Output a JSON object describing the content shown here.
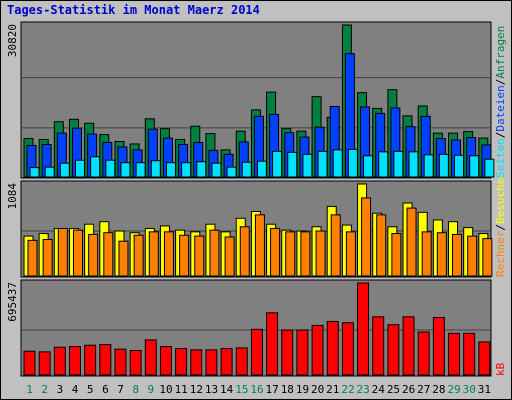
{
  "chart_data": {
    "type": "bar",
    "title": "Tages-Statistik im Monat Maerz 2014",
    "categories": [
      "1",
      "2",
      "3",
      "4",
      "5",
      "6",
      "7",
      "8",
      "9",
      "10",
      "11",
      "12",
      "13",
      "14",
      "15",
      "16",
      "17",
      "18",
      "19",
      "20",
      "21",
      "22",
      "23",
      "24",
      "25",
      "26",
      "27",
      "28",
      "29",
      "30",
      "31"
    ],
    "weekend_days": [
      "1",
      "2",
      "8",
      "9",
      "15",
      "16",
      "22",
      "23",
      "29",
      "30"
    ],
    "panels": [
      {
        "name": "hits-files-pages",
        "ymax_label": "30820",
        "ymax": 30820,
        "series": [
          {
            "name": "Anfragen",
            "color": "#008040",
            "values": [
              7800,
              7600,
              11200,
              11700,
              10900,
              8600,
              7200,
              6700,
              11800,
              9800,
              7600,
              10300,
              8800,
              5500,
              9300,
              13600,
              17200,
              9800,
              9300,
              16300,
              12100,
              30820,
              17100,
              13900,
              17700,
              12400,
              14400,
              8900,
              8900,
              9200,
              7900
            ]
          },
          {
            "name": "Dateien",
            "color": "#0040FF",
            "values": [
              6400,
              6600,
              8900,
              9900,
              8700,
              7000,
              6100,
              5500,
              9700,
              7900,
              6600,
              7000,
              5400,
              4600,
              7100,
              12300,
              12700,
              9000,
              8100,
              10100,
              14300,
              25000,
              14200,
              12900,
              14000,
              10200,
              12300,
              7800,
              7500,
              8000,
              6500
            ]
          },
          {
            "name": "Seiten",
            "color": "#00E0FF",
            "values": [
              1900,
              2000,
              2800,
              3400,
              4100,
              3400,
              2900,
              2900,
              3300,
              2900,
              2900,
              3100,
              2800,
              2000,
              3000,
              3200,
              5200,
              5000,
              4600,
              5200,
              5500,
              5600,
              4300,
              5100,
              5200,
              5100,
              4500,
              4600,
              4400,
              4300,
              3600
            ]
          }
        ]
      },
      {
        "name": "visits-sites",
        "ymax_label": "1084",
        "ymax": 1084,
        "series": [
          {
            "name": "Besuche",
            "color": "#FFFF00",
            "values": [
              470,
              500,
              560,
              560,
              610,
              640,
              530,
              510,
              560,
              590,
              540,
              520,
              610,
              520,
              680,
              760,
              610,
              540,
              530,
              580,
              820,
              600,
              1084,
              740,
              580,
              860,
              750,
              660,
              640,
              570,
              500
            ]
          },
          {
            "name": "Rechner",
            "color": "#FF8000",
            "values": [
              420,
              430,
              560,
              540,
              490,
              510,
              410,
              480,
              520,
              520,
              480,
              470,
              540,
              460,
              580,
              720,
              560,
              520,
              520,
              530,
              720,
              520,
              920,
              720,
              500,
              800,
              520,
              510,
              490,
              470,
              440
            ]
          }
        ]
      },
      {
        "name": "kbytes",
        "ymax_label": "695437",
        "ymax": 695437,
        "series": [
          {
            "name": "kB",
            "color": "#FF0000",
            "values": [
              180000,
              175000,
              210000,
              215000,
              225000,
              230000,
              195000,
              185000,
              265000,
              215000,
              200000,
              190000,
              190000,
              200000,
              205000,
              345000,
              470000,
              340000,
              340000,
              375000,
              405000,
              395000,
              695437,
              440000,
              380000,
              440000,
              325000,
              435000,
              315000,
              315000,
              250000
            ]
          }
        ]
      }
    ],
    "legend_vertical": [
      "Anfragen",
      "Dateien",
      "Seiten",
      "Besuche",
      "Rechner",
      "kB"
    ],
    "legend_separator": "/"
  },
  "colors": {
    "background": "#C0C0C0",
    "plot_bg": "#808080",
    "grid": "#000000",
    "title": "#0000CC",
    "weekday_label": "#000000",
    "weekend_label": "#00805C"
  }
}
